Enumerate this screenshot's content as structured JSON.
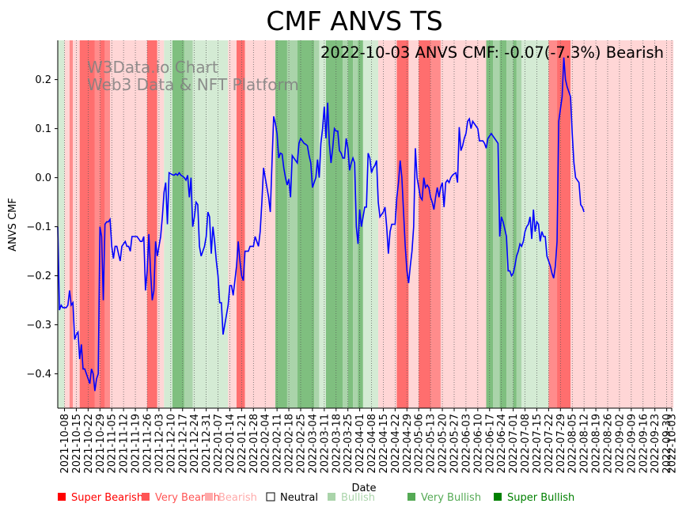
{
  "colors": {
    "super_bearish": "#ff0000",
    "very_bearish": "#ff5555",
    "bearish": "#ffaaaa",
    "neutral": "#ffffff",
    "bullish": "#aad4aa",
    "very_bullish": "#55aa55",
    "super_bullish": "#008000",
    "band_super_bearish": "#ff6e6e",
    "band_very_bearish": "#ff8c8c",
    "band_bearish": "#ffd6d6",
    "band_bullish": "#d4ebd4",
    "band_very_bullish": "#aad4aa",
    "band_super_bullish": "#7fbf7f",
    "line": "#0000ff"
  },
  "chart_data": {
    "type": "line",
    "title": "CMF ANVS TS",
    "xlabel": "Date",
    "ylabel": "ANVS CMF",
    "ylim": [
      -0.47,
      0.28
    ],
    "yticks": [
      -0.4,
      -0.3,
      -0.2,
      -0.1,
      0.0,
      0.1,
      0.2
    ],
    "ytick_labels": [
      "−0.4",
      "−0.3",
      "−0.2",
      "−0.1",
      "0.0",
      "0.1",
      "0.2"
    ],
    "x_start": "2021-10-04",
    "x_end": "2022-10-03",
    "xtick_labels": [
      "2021-10-08",
      "2021-10-15",
      "2021-10-22",
      "2021-10-29",
      "2021-11-05",
      "2021-11-12",
      "2021-11-19",
      "2021-11-26",
      "2021-12-03",
      "2021-12-10",
      "2021-12-17",
      "2021-12-24",
      "2021-12-31",
      "2022-01-07",
      "2022-01-14",
      "2022-01-21",
      "2022-01-28",
      "2022-02-04",
      "2022-02-11",
      "2022-02-18",
      "2022-02-25",
      "2022-03-04",
      "2022-03-11",
      "2022-03-18",
      "2022-03-25",
      "2022-04-01",
      "2022-04-08",
      "2022-04-15",
      "2022-04-22",
      "2022-04-29",
      "2022-05-06",
      "2022-05-13",
      "2022-05-20",
      "2022-05-27",
      "2022-06-03",
      "2022-06-10",
      "2022-06-17",
      "2022-06-24",
      "2022-07-01",
      "2022-07-08",
      "2022-07-15",
      "2022-07-22",
      "2022-07-29",
      "2022-08-05",
      "2022-08-12",
      "2022-08-19",
      "2022-08-26",
      "2022-09-02",
      "2022-09-09",
      "2022-09-16",
      "2022-09-23",
      "2022-09-30",
      "2022-10-03"
    ],
    "annotation": "2022-10-03 ANVS CMF: -0.07(-7.3%) Bearish",
    "watermark": [
      "W3Data.io Chart",
      "Web3 Data & NFT Platform"
    ],
    "series": [
      {
        "name": "ANVS CMF",
        "day_offsets": [
          0,
          1,
          2,
          3,
          4,
          5,
          6,
          7,
          8,
          9,
          10,
          11,
          12,
          13,
          14,
          15,
          16,
          17,
          18,
          19,
          20,
          21,
          22,
          23,
          24,
          25,
          26,
          27,
          28,
          29,
          30,
          31,
          32,
          33,
          34,
          35,
          36,
          37,
          38,
          39,
          40,
          41,
          42,
          43,
          44,
          45,
          46,
          47,
          48,
          49,
          50,
          51,
          52,
          53,
          54,
          55,
          56,
          57,
          58,
          59,
          60,
          61,
          62,
          63,
          64,
          65,
          66,
          67,
          68,
          69,
          70,
          71,
          72,
          73,
          74,
          75,
          76,
          77,
          78,
          79,
          80,
          81,
          82,
          83,
          84,
          85,
          86,
          87,
          88,
          89,
          90,
          91,
          92,
          93,
          94,
          95,
          96,
          97,
          98,
          99,
          100,
          101,
          102,
          103,
          104,
          105,
          106,
          107,
          108,
          109,
          110,
          111,
          112,
          113,
          114,
          115,
          116,
          117,
          118,
          119,
          120,
          121,
          122,
          123,
          124,
          125,
          126,
          127,
          128,
          129,
          130,
          131,
          132,
          133,
          134,
          135,
          136,
          137,
          138,
          139,
          140,
          141,
          142,
          143,
          144,
          145,
          146,
          147,
          148,
          149,
          150,
          151,
          152,
          153,
          154,
          155,
          156,
          157,
          158,
          159,
          160,
          161,
          162,
          163,
          164,
          165,
          166,
          167,
          168,
          169,
          170,
          171,
          172,
          173,
          174,
          175,
          176,
          177,
          178,
          179,
          180,
          181,
          182,
          183,
          184,
          185,
          186,
          187,
          188,
          189,
          190,
          191,
          192,
          193,
          194,
          195,
          196,
          197,
          198,
          199,
          200,
          201,
          202,
          203,
          204,
          205,
          206,
          207,
          208,
          209,
          210,
          211,
          212,
          213,
          214,
          215,
          216,
          217,
          218,
          219,
          220,
          221,
          222,
          223,
          224,
          225,
          226,
          227,
          228,
          229,
          230,
          231,
          232,
          233,
          234,
          235,
          236,
          237,
          238,
          239,
          240,
          241,
          242,
          243,
          244,
          245,
          246,
          247,
          248,
          249,
          250,
          251,
          252,
          253,
          254,
          255,
          256,
          257,
          258,
          259,
          260,
          261,
          262,
          263,
          264,
          265,
          266,
          267,
          268,
          269,
          270,
          271,
          272,
          273,
          274,
          275,
          276,
          277,
          278,
          279,
          280,
          281,
          282,
          283,
          284,
          285,
          286,
          287,
          288,
          289,
          290,
          291,
          292,
          293,
          294,
          295,
          296,
          297,
          298,
          299,
          300,
          301,
          302,
          303,
          304,
          305,
          306,
          307,
          308,
          309,
          310,
          311,
          312,
          313,
          314,
          315,
          316,
          317,
          318,
          319,
          320,
          321,
          322,
          323,
          324,
          325,
          326,
          327,
          328,
          329,
          330,
          331,
          332,
          333,
          334,
          335,
          336,
          337,
          338,
          339,
          340,
          341,
          342,
          343,
          344,
          345,
          346,
          347,
          348,
          349,
          350,
          351,
          352,
          353,
          354,
          355,
          356,
          357,
          358,
          359,
          360,
          361,
          362,
          363,
          364
        ],
        "values": [
          -0.1,
          -0.27,
          -0.26,
          -0.265,
          -0.265,
          -0.265,
          -0.26,
          -0.23,
          -0.26,
          -0.255,
          -0.33,
          -0.32,
          -0.315,
          -0.37,
          -0.34,
          -0.39,
          -0.39,
          -0.4,
          -0.41,
          -0.42,
          -0.39,
          -0.4,
          -0.435,
          -0.41,
          -0.4,
          -0.1,
          -0.12,
          -0.25,
          -0.095,
          -0.09,
          -0.09,
          -0.085,
          -0.14,
          -0.165,
          -0.14,
          -0.14,
          -0.155,
          -0.17,
          -0.14,
          -0.135,
          -0.13,
          -0.14,
          -0.14,
          -0.15,
          -0.12,
          -0.12,
          -0.12,
          -0.12,
          -0.125,
          -0.13,
          -0.13,
          -0.12,
          -0.23,
          -0.19,
          -0.115,
          -0.19,
          -0.25,
          -0.23,
          -0.13,
          -0.16,
          -0.14,
          -0.12,
          -0.08,
          -0.03,
          -0.01,
          -0.095,
          0.01,
          0.008,
          0.006,
          0.005,
          0.008,
          0.005,
          0.01,
          0.005,
          0.003,
          0.0,
          -0.005,
          0.005,
          -0.04,
          0.0,
          -0.1,
          -0.08,
          -0.05,
          -0.055,
          -0.14,
          -0.16,
          -0.15,
          -0.14,
          -0.12,
          -0.07,
          -0.08,
          -0.155,
          -0.1,
          -0.13,
          -0.17,
          -0.2,
          -0.255,
          -0.255,
          -0.32,
          -0.3,
          -0.28,
          -0.26,
          -0.22,
          -0.22,
          -0.24,
          -0.21,
          -0.18,
          -0.13,
          -0.17,
          -0.2,
          -0.21,
          -0.15,
          -0.15,
          -0.15,
          -0.14,
          -0.14,
          -0.14,
          -0.12,
          -0.13,
          -0.14,
          -0.11,
          -0.05,
          0.02,
          0.0,
          -0.02,
          -0.04,
          -0.07,
          0.03,
          0.125,
          0.11,
          0.09,
          0.04,
          0.05,
          0.048,
          0.02,
          0.0,
          -0.015,
          -0.003,
          -0.04,
          0.045,
          0.04,
          0.035,
          0.03,
          0.07,
          0.08,
          0.075,
          0.07,
          0.068,
          0.065,
          0.045,
          0.03,
          -0.02,
          -0.01,
          0.0,
          0.037,
          0.0,
          0.07,
          0.1,
          0.145,
          0.08,
          0.153,
          0.07,
          0.03,
          0.06,
          0.1,
          0.095,
          0.095,
          0.055,
          0.05,
          0.04,
          0.04,
          0.08,
          0.06,
          0.015,
          0.03,
          0.04,
          0.03,
          -0.1,
          -0.135,
          -0.065,
          -0.1,
          -0.08,
          -0.06,
          -0.06,
          0.05,
          0.04,
          0.01,
          0.02,
          0.025,
          0.035,
          -0.05,
          -0.08,
          -0.075,
          -0.07,
          -0.06,
          -0.1,
          -0.155,
          -0.11,
          -0.095,
          -0.095,
          -0.095,
          -0.04,
          -0.01,
          0.035,
          0.0,
          -0.07,
          -0.14,
          -0.19,
          -0.215,
          -0.18,
          -0.15,
          -0.1,
          0.06,
          0.0,
          -0.02,
          -0.04,
          -0.045,
          0.0,
          -0.02,
          -0.015,
          -0.02,
          -0.04,
          -0.05,
          -0.065,
          -0.04,
          -0.02,
          -0.04,
          -0.02,
          -0.01,
          -0.06,
          -0.01,
          -0.005,
          -0.01,
          0.0,
          0.005,
          0.008,
          0.01,
          -0.01,
          0.103,
          0.055,
          0.065,
          0.08,
          0.09,
          0.115,
          0.12,
          0.1,
          0.115,
          0.11,
          0.105,
          0.1,
          0.075,
          0.075,
          0.075,
          0.07,
          0.06,
          0.08,
          0.085,
          0.09,
          0.085,
          0.08,
          0.075,
          0.07,
          -0.12,
          -0.08,
          -0.09,
          -0.105,
          -0.12,
          -0.19,
          -0.19,
          -0.2,
          -0.195,
          -0.18,
          -0.16,
          -0.15,
          -0.135,
          -0.14,
          -0.13,
          -0.11,
          -0.1,
          -0.095,
          -0.08,
          -0.125,
          -0.065,
          -0.11,
          -0.09,
          -0.095,
          -0.13,
          -0.11,
          -0.12,
          -0.12,
          -0.16,
          -0.17,
          -0.18,
          -0.195,
          -0.205,
          -0.18,
          -0.13,
          0.115,
          0.14,
          0.165,
          0.245,
          0.2,
          0.185,
          0.175,
          0.165,
          0.09,
          0.03,
          0.0,
          -0.005,
          -0.01,
          -0.055,
          -0.06,
          -0.07
        ]
      }
    ],
    "bands": [
      {
        "start": 0,
        "end": 4,
        "cat": "bullish"
      },
      {
        "start": 4,
        "end": 7,
        "cat": "bearish"
      },
      {
        "start": 7,
        "end": 9,
        "cat": "very_bearish"
      },
      {
        "start": 9,
        "end": 13,
        "cat": "bearish"
      },
      {
        "start": 13,
        "end": 22,
        "cat": "super_bearish"
      },
      {
        "start": 22,
        "end": 25,
        "cat": "very_bearish"
      },
      {
        "start": 25,
        "end": 28,
        "cat": "super_bearish"
      },
      {
        "start": 28,
        "end": 31,
        "cat": "very_bearish"
      },
      {
        "start": 31,
        "end": 53,
        "cat": "bearish"
      },
      {
        "start": 53,
        "end": 59,
        "cat": "super_bearish"
      },
      {
        "start": 59,
        "end": 63,
        "cat": "bearish"
      },
      {
        "start": 63,
        "end": 68,
        "cat": "bullish"
      },
      {
        "start": 68,
        "end": 75,
        "cat": "super_bullish"
      },
      {
        "start": 75,
        "end": 80,
        "cat": "very_bullish"
      },
      {
        "start": 80,
        "end": 89,
        "cat": "bullish"
      },
      {
        "start": 89,
        "end": 101,
        "cat": "bullish"
      },
      {
        "start": 101,
        "end": 106,
        "cat": "bearish"
      },
      {
        "start": 106,
        "end": 111,
        "cat": "super_bearish"
      },
      {
        "start": 111,
        "end": 129,
        "cat": "bearish"
      },
      {
        "start": 129,
        "end": 136,
        "cat": "super_bullish"
      },
      {
        "start": 136,
        "end": 142,
        "cat": "very_bullish"
      },
      {
        "start": 142,
        "end": 152,
        "cat": "super_bullish"
      },
      {
        "start": 152,
        "end": 155,
        "cat": "very_bullish"
      },
      {
        "start": 155,
        "end": 159,
        "cat": "bullish"
      },
      {
        "start": 159,
        "end": 169,
        "cat": "super_bullish"
      },
      {
        "start": 169,
        "end": 172,
        "cat": "very_bullish"
      },
      {
        "start": 172,
        "end": 175,
        "cat": "super_bullish"
      },
      {
        "start": 175,
        "end": 178,
        "cat": "very_bullish"
      },
      {
        "start": 178,
        "end": 181,
        "cat": "super_bullish"
      },
      {
        "start": 181,
        "end": 190,
        "cat": "bullish"
      },
      {
        "start": 190,
        "end": 201,
        "cat": "bearish"
      },
      {
        "start": 201,
        "end": 208,
        "cat": "super_bearish"
      },
      {
        "start": 208,
        "end": 214,
        "cat": "bearish"
      },
      {
        "start": 214,
        "end": 221,
        "cat": "super_bearish"
      },
      {
        "start": 221,
        "end": 227,
        "cat": "very_bearish"
      },
      {
        "start": 227,
        "end": 254,
        "cat": "bearish"
      },
      {
        "start": 254,
        "end": 258,
        "cat": "super_bullish"
      },
      {
        "start": 258,
        "end": 262,
        "cat": "very_bullish"
      },
      {
        "start": 262,
        "end": 266,
        "cat": "super_bullish"
      },
      {
        "start": 266,
        "end": 270,
        "cat": "very_bullish"
      },
      {
        "start": 270,
        "end": 272,
        "cat": "super_bullish"
      },
      {
        "start": 272,
        "end": 275,
        "cat": "very_bullish"
      },
      {
        "start": 275,
        "end": 291,
        "cat": "bullish"
      },
      {
        "start": 291,
        "end": 296,
        "cat": "very_bearish"
      },
      {
        "start": 296,
        "end": 304,
        "cat": "super_bearish"
      },
      {
        "start": 304,
        "end": 365,
        "cat": "bearish"
      }
    ]
  },
  "legend": [
    {
      "label": "Super Bearish",
      "color_key": "super_bearish"
    },
    {
      "label": "Very Bearish",
      "color_key": "very_bearish"
    },
    {
      "label": "Bearish",
      "color_key": "bearish"
    },
    {
      "label": "Neutral",
      "color_key": "neutral"
    },
    {
      "label": "Bullish",
      "color_key": "bullish"
    },
    {
      "label": "Very Bullish",
      "color_key": "very_bullish"
    },
    {
      "label": "Super Bullish",
      "color_key": "super_bullish"
    }
  ]
}
